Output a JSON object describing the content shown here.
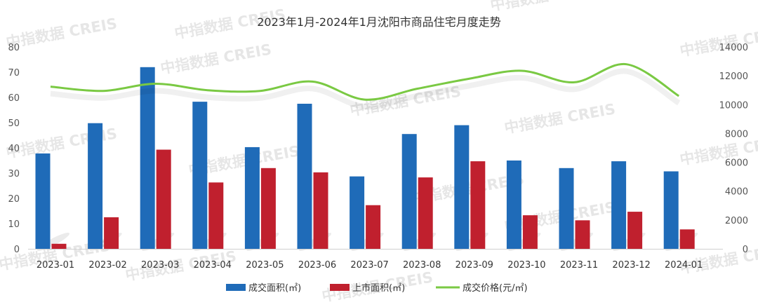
{
  "chart_data": {
    "type": "bar",
    "title": "2023年1月-2024年1月沈阳市商品住宅月度走势",
    "categories": [
      "2023-01",
      "2023-02",
      "2023-03",
      "2023-04",
      "2023-05",
      "2023-06",
      "2023-07",
      "2023-08",
      "2023-09",
      "2023-10",
      "2023-11",
      "2023-12",
      "2024-01"
    ],
    "y_left": {
      "ylim": [
        0,
        80
      ],
      "ticks": [
        "0",
        "10",
        "20",
        "30",
        "40",
        "50",
        "60",
        "70",
        "80"
      ]
    },
    "y_right": {
      "ylim": [
        0,
        14000
      ],
      "ticks": [
        "0",
        "2000",
        "4000",
        "6000",
        "8000",
        "10000",
        "12000",
        "14000"
      ]
    },
    "series": [
      {
        "name": "成交面积(㎡)",
        "type": "bar",
        "axis": "left",
        "color": "#1f6bb8",
        "values": [
          37.8,
          49.8,
          72.0,
          58.3,
          40.3,
          57.5,
          28.7,
          45.5,
          49.0,
          35.0,
          32.0,
          34.7,
          30.7
        ]
      },
      {
        "name": "上市面积(㎡)",
        "type": "bar",
        "axis": "left",
        "color": "#c0202e",
        "values": [
          2.0,
          12.5,
          39.3,
          26.3,
          32.0,
          30.3,
          17.3,
          28.3,
          34.7,
          13.3,
          11.3,
          14.7,
          7.7
        ]
      },
      {
        "name": "成交价格(元/㎡)",
        "type": "line",
        "axis": "right",
        "color": "#7ac943",
        "values": [
          11250,
          10950,
          11450,
          11000,
          10950,
          11600,
          10350,
          11100,
          11800,
          12350,
          11550,
          12800,
          10600
        ]
      }
    ],
    "legend": "bottom",
    "grid": false,
    "watermark": "中指数据 CREIS"
  }
}
